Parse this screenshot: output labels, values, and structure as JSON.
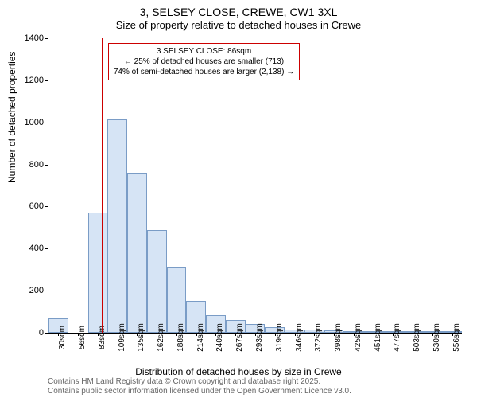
{
  "title": "3, SELSEY CLOSE, CREWE, CW1 3XL",
  "subtitle": "Size of property relative to detached houses in Crewe",
  "chart": {
    "type": "histogram",
    "ylabel": "Number of detached properties",
    "xlabel": "Distribution of detached houses by size in Crewe",
    "ylim": [
      0,
      1400
    ],
    "ytick_step": 200,
    "yticks": [
      0,
      200,
      400,
      600,
      800,
      1000,
      1200,
      1400
    ],
    "xticks": [
      "30sqm",
      "56sqm",
      "83sqm",
      "109sqm",
      "135sqm",
      "162sqm",
      "188sqm",
      "214sqm",
      "240sqm",
      "267sqm",
      "293sqm",
      "319sqm",
      "346sqm",
      "372sqm",
      "398sqm",
      "425sqm",
      "451sqm",
      "477sqm",
      "503sqm",
      "530sqm",
      "556sqm"
    ],
    "bar_values": [
      70,
      0,
      570,
      1015,
      760,
      490,
      310,
      150,
      85,
      60,
      40,
      25,
      15,
      15,
      10,
      5,
      5,
      3,
      2,
      2,
      1
    ],
    "bar_fill": "#d6e4f5",
    "bar_stroke": "#7a9cc6",
    "background_color": "#ffffff",
    "marker": {
      "position_index": 2.2,
      "color": "#cc0000",
      "label_lines": [
        "3 SELSEY CLOSE: 86sqm",
        "← 25% of detached houses are smaller (713)",
        "74% of semi-detached houses are larger (2,138) →"
      ]
    }
  },
  "footer": {
    "line1": "Contains HM Land Registry data © Crown copyright and database right 2025.",
    "line2": "Contains public sector information licensed under the Open Government Licence v3.0."
  },
  "colors": {
    "text": "#000000",
    "footer_text": "#666666",
    "marker": "#cc0000"
  },
  "fonts": {
    "title_size": 14,
    "label_size": 12,
    "tick_size": 11,
    "footer_size": 10
  }
}
